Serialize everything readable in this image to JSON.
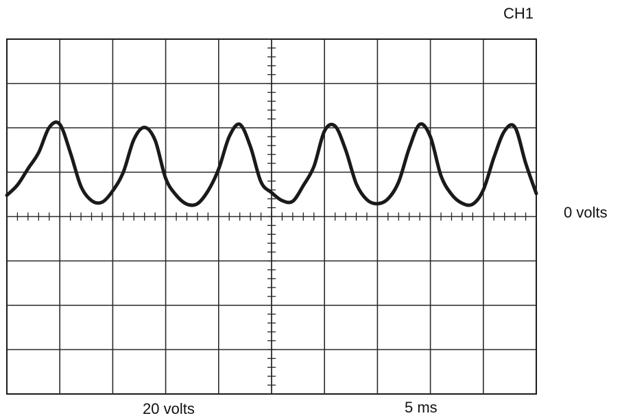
{
  "channel_label": "CH1",
  "zero_reference_label": "0 volts",
  "vertical_scale_label": "20 volts",
  "time_base_label": "5 ms",
  "screen": {
    "horizontal_divisions": 10,
    "vertical_divisions": 8,
    "minor_ticks_per_division": 5,
    "zero_level_division_from_top": 4
  },
  "chart_data": {
    "type": "line",
    "x_unit_per_division": 5,
    "x_unit": "ms",
    "y_unit_per_division": 20,
    "y_unit": "V",
    "series": [
      {
        "color": "#1a1a1a",
        "x": [
          0,
          1,
          2,
          3,
          4,
          5,
          6,
          7,
          8,
          9,
          10,
          11,
          12,
          13,
          14,
          15,
          16,
          17,
          18,
          19,
          20,
          21,
          22,
          23,
          24,
          25,
          26,
          27,
          28,
          29,
          30,
          31,
          32,
          33,
          34,
          35,
          36,
          37,
          38,
          39,
          40,
          41,
          42,
          43,
          44,
          45,
          46,
          47,
          48,
          49,
          50
        ],
        "y": [
          9.6,
          14.2,
          21.6,
          28.8,
          40.2,
          41.6,
          28.8,
          13.6,
          7.2,
          6.5,
          11.6,
          20.0,
          34.8,
          40.2,
          34.4,
          17.2,
          9.6,
          5.6,
          5.8,
          11.6,
          21.4,
          36.0,
          41.6,
          31.6,
          15.6,
          10.8,
          7.2,
          6.9,
          14.0,
          22.6,
          38.6,
          40.8,
          30.0,
          14.8,
          7.6,
          5.8,
          8.0,
          15.6,
          30.8,
          41.6,
          36.0,
          18.4,
          10.0,
          6.0,
          5.6,
          12.0,
          26.6,
          38.6,
          40.2,
          24.0,
          10.4
        ]
      }
    ]
  }
}
